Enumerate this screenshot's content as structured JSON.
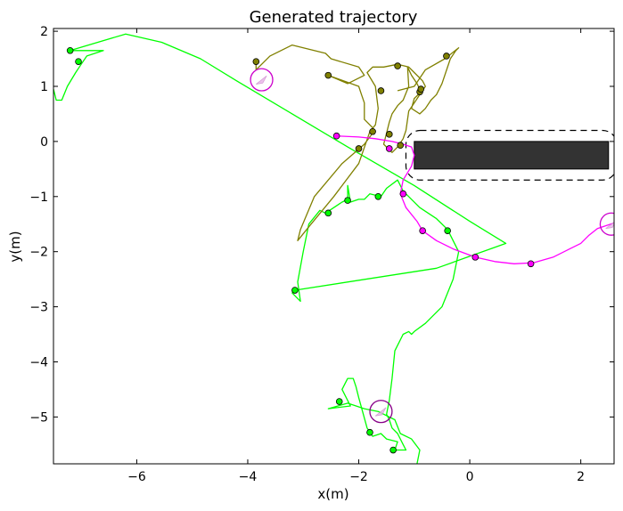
{
  "chart_data": {
    "type": "line",
    "title": "Generated trajectory",
    "xlabel": "x(m)",
    "ylabel": "y(m)",
    "xlim": [
      -7.5,
      2.6
    ],
    "ylim": [
      -5.85,
      2.05
    ],
    "xticks": [
      -6,
      -4,
      -2,
      0,
      2
    ],
    "yticks": [
      2,
      1,
      0,
      -1,
      -2,
      -3,
      -4,
      -5
    ],
    "grid": false,
    "series": [
      {
        "color": "#00ff00",
        "points": [
          [
            -7.5,
            0.95
          ],
          [
            -7.45,
            0.75
          ],
          [
            -7.35,
            0.75
          ],
          [
            -7.25,
            1.0
          ],
          [
            -7.1,
            1.25
          ],
          [
            -7.0,
            1.4
          ],
          [
            -6.9,
            1.55
          ],
          [
            -6.6,
            1.65
          ],
          [
            -7.2,
            1.65
          ],
          [
            -6.2,
            1.95
          ],
          [
            -5.55,
            1.8
          ],
          [
            -4.85,
            1.5
          ],
          [
            -4.2,
            1.1
          ],
          [
            -3.2,
            0.5
          ],
          [
            -2.2,
            -0.1
          ],
          [
            -1.0,
            -0.8
          ],
          [
            0.0,
            -1.45
          ],
          [
            0.65,
            -1.85
          ],
          [
            -0.6,
            -2.3
          ],
          [
            -3.15,
            -2.7
          ],
          [
            -3.2,
            -2.75
          ],
          [
            -3.05,
            -2.9
          ],
          [
            -3.1,
            -2.55
          ],
          [
            -3.0,
            -2.0
          ],
          [
            -2.9,
            -1.5
          ],
          [
            -2.7,
            -1.25
          ],
          [
            -2.6,
            -1.3
          ],
          [
            -2.45,
            -1.2
          ],
          [
            -2.3,
            -1.1
          ],
          [
            -2.2,
            -1.05
          ],
          [
            -2.2,
            -0.8
          ],
          [
            -2.15,
            -1.1
          ],
          [
            -2.0,
            -1.05
          ],
          [
            -1.9,
            -1.05
          ],
          [
            -1.8,
            -0.95
          ],
          [
            -1.6,
            -1.0
          ],
          [
            -1.5,
            -0.85
          ],
          [
            -1.3,
            -0.7
          ],
          [
            -1.2,
            -0.9
          ],
          [
            -0.9,
            -1.2
          ],
          [
            -0.6,
            -1.4
          ],
          [
            -0.4,
            -1.6
          ],
          [
            -0.2,
            -2.0
          ],
          [
            -0.3,
            -2.5
          ],
          [
            -0.5,
            -3.0
          ],
          [
            -0.8,
            -3.3
          ],
          [
            -1.0,
            -3.45
          ],
          [
            -1.05,
            -3.5
          ],
          [
            -1.1,
            -3.45
          ],
          [
            -1.2,
            -3.5
          ],
          [
            -1.35,
            -3.8
          ],
          [
            -1.4,
            -4.3
          ],
          [
            -1.45,
            -4.7
          ],
          [
            -1.5,
            -4.95
          ],
          [
            -1.45,
            -5.05
          ],
          [
            -1.4,
            -5.2
          ],
          [
            -1.3,
            -5.3
          ],
          [
            -1.2,
            -5.5
          ],
          [
            -1.15,
            -5.6
          ],
          [
            -1.35,
            -5.6
          ],
          [
            -1.3,
            -5.45
          ],
          [
            -1.5,
            -5.4
          ],
          [
            -1.6,
            -5.3
          ],
          [
            -1.75,
            -5.35
          ],
          [
            -1.85,
            -5.2
          ],
          [
            -2.0,
            -4.65
          ],
          [
            -2.05,
            -4.45
          ],
          [
            -2.1,
            -4.3
          ],
          [
            -2.2,
            -4.3
          ],
          [
            -2.3,
            -4.5
          ],
          [
            -2.15,
            -4.8
          ],
          [
            -2.55,
            -4.85
          ],
          [
            -2.2,
            -4.75
          ],
          [
            -1.9,
            -4.85
          ],
          [
            -1.65,
            -4.9
          ],
          [
            -1.35,
            -5.05
          ],
          [
            -1.25,
            -5.3
          ],
          [
            -1.05,
            -5.4
          ],
          [
            -0.9,
            -5.6
          ],
          [
            -0.95,
            -5.85
          ]
        ],
        "markers": [
          [
            -7.2,
            1.65
          ],
          [
            -7.05,
            1.45
          ],
          [
            -3.15,
            -2.7
          ],
          [
            -2.55,
            -1.3
          ],
          [
            -2.2,
            -1.07
          ],
          [
            -1.65,
            -1.0
          ],
          [
            -0.4,
            -1.62
          ],
          [
            -2.35,
            -4.72
          ],
          [
            -1.8,
            -5.28
          ],
          [
            -1.38,
            -5.6
          ]
        ]
      },
      {
        "color": "#808000",
        "points": [
          [
            -3.85,
            1.45
          ],
          [
            -3.85,
            1.3
          ],
          [
            -3.6,
            1.55
          ],
          [
            -3.2,
            1.75
          ],
          [
            -2.6,
            1.6
          ],
          [
            -2.5,
            1.5
          ],
          [
            -2.0,
            1.35
          ],
          [
            -1.9,
            1.2
          ],
          [
            -2.2,
            1.05
          ],
          [
            -2.55,
            1.2
          ],
          [
            -2.0,
            1.0
          ],
          [
            -1.95,
            0.85
          ],
          [
            -1.9,
            0.7
          ],
          [
            -1.9,
            0.4
          ],
          [
            -1.75,
            0.25
          ],
          [
            -1.75,
            0.15
          ],
          [
            -1.9,
            -0.05
          ],
          [
            -2.3,
            -0.4
          ],
          [
            -2.8,
            -1.0
          ],
          [
            -3.05,
            -1.6
          ],
          [
            -3.1,
            -1.8
          ],
          [
            -2.9,
            -1.55
          ],
          [
            -2.45,
            -1.0
          ],
          [
            -2.0,
            -0.4
          ],
          [
            -1.8,
            0.18
          ],
          [
            -1.7,
            0.3
          ],
          [
            -1.65,
            0.6
          ],
          [
            -1.7,
            1.0
          ],
          [
            -1.85,
            1.25
          ],
          [
            -1.75,
            1.35
          ],
          [
            -1.55,
            1.35
          ],
          [
            -1.3,
            1.4
          ],
          [
            -1.1,
            1.35
          ],
          [
            -1.0,
            1.25
          ],
          [
            -0.85,
            1.1
          ],
          [
            -0.8,
            1.0
          ],
          [
            -0.9,
            0.85
          ],
          [
            -1.0,
            0.7
          ],
          [
            -1.1,
            0.55
          ],
          [
            -1.15,
            0.2
          ],
          [
            -1.2,
            0.05
          ],
          [
            -1.3,
            -0.1
          ],
          [
            -1.4,
            -0.2
          ],
          [
            -1.55,
            -0.05
          ],
          [
            -1.5,
            0.15
          ],
          [
            -1.45,
            0.35
          ],
          [
            -1.4,
            0.5
          ],
          [
            -1.3,
            0.65
          ],
          [
            -1.2,
            0.75
          ],
          [
            -1.1,
            1.0
          ],
          [
            -1.12,
            1.35
          ],
          [
            -1.05,
            1.2
          ],
          [
            -0.95,
            1.05
          ],
          [
            -0.88,
            0.9
          ],
          [
            -1.0,
            0.78
          ],
          [
            -1.05,
            0.6
          ],
          [
            -0.9,
            0.5
          ],
          [
            -0.8,
            0.6
          ],
          [
            -0.7,
            0.75
          ],
          [
            -0.6,
            0.85
          ],
          [
            -0.5,
            1.05
          ],
          [
            -0.35,
            1.5
          ],
          [
            -0.25,
            1.65
          ],
          [
            -0.2,
            1.7
          ],
          [
            -0.45,
            1.5
          ],
          [
            -0.8,
            1.3
          ],
          [
            -1.0,
            1.0
          ],
          [
            -1.3,
            0.92
          ]
        ],
        "markers": [
          [
            -3.85,
            1.45
          ],
          [
            -2.55,
            1.2
          ],
          [
            -1.75,
            0.18
          ],
          [
            -2.0,
            -0.13
          ],
          [
            -1.45,
            0.13
          ],
          [
            -1.3,
            1.37
          ],
          [
            -0.9,
            0.9
          ],
          [
            -0.88,
            0.95
          ],
          [
            -0.42,
            1.55
          ],
          [
            -1.25,
            -0.07
          ],
          [
            -1.6,
            0.92
          ]
        ]
      },
      {
        "color": "#ff00ff",
        "points": [
          [
            -2.4,
            0.1
          ],
          [
            -2.0,
            0.08
          ],
          [
            -1.7,
            0.05
          ],
          [
            -1.4,
            0.0
          ],
          [
            -1.2,
            -0.05
          ],
          [
            -1.05,
            -0.1
          ],
          [
            -1.0,
            -0.25
          ],
          [
            -1.05,
            -0.45
          ],
          [
            -1.2,
            -0.7
          ],
          [
            -1.25,
            -0.95
          ],
          [
            -1.15,
            -1.2
          ],
          [
            -0.95,
            -1.45
          ],
          [
            -0.85,
            -1.62
          ],
          [
            -0.6,
            -1.8
          ],
          [
            -0.3,
            -1.95
          ],
          [
            0.1,
            -2.1
          ],
          [
            0.45,
            -2.18
          ],
          [
            0.8,
            -2.22
          ],
          [
            1.15,
            -2.2
          ],
          [
            1.5,
            -2.1
          ],
          [
            1.8,
            -1.95
          ],
          [
            2.0,
            -1.85
          ],
          [
            2.15,
            -1.7
          ],
          [
            2.3,
            -1.58
          ],
          [
            2.6,
            -1.48
          ]
        ],
        "markers": [
          [
            -2.4,
            0.1
          ],
          [
            -1.45,
            -0.13
          ],
          [
            -1.2,
            -0.95
          ],
          [
            -0.85,
            -1.62
          ],
          [
            0.1,
            -2.1
          ],
          [
            1.1,
            -2.22
          ]
        ]
      }
    ],
    "circles": [
      {
        "center": [
          -3.75,
          1.12
        ],
        "radius": 0.2,
        "color": "#cc00cc"
      },
      {
        "center": [
          -1.6,
          -4.9
        ],
        "radius": 0.2,
        "color": "#880088"
      },
      {
        "center": [
          2.55,
          -1.5
        ],
        "radius": 0.2,
        "color": "#cc00cc"
      }
    ],
    "obstacle": {
      "x_range": [
        -1.0,
        2.5
      ],
      "y_range": [
        -0.5,
        0.0
      ],
      "color": "#333333"
    },
    "safety_region": {
      "x_range": [
        -1.15,
        2.65
      ],
      "y_range": [
        -0.7,
        0.2
      ],
      "style": "dashed"
    }
  }
}
